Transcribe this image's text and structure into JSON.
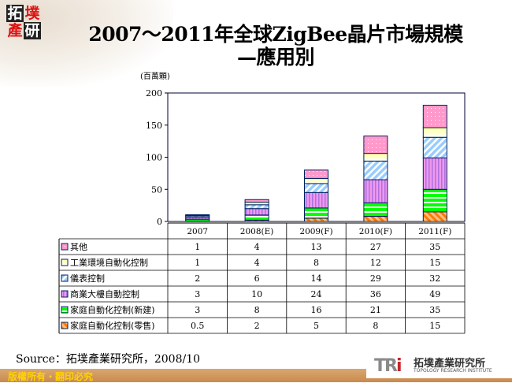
{
  "logo": {
    "chars": [
      "拓",
      "墣",
      "產",
      "研"
    ]
  },
  "title_line1": "2007～2011年全球ZigBee晶片市場規模",
  "title_line2": "—應用別",
  "unit_label": "(百萬顆)",
  "chart_data": {
    "type": "bar",
    "stacked": true,
    "categories": [
      "2007",
      "2008(E)",
      "2009(F)",
      "2010(F)",
      "2011(F)"
    ],
    "ylabel": "(百萬顆)",
    "ylim": [
      0,
      200
    ],
    "yticks": [
      0,
      50,
      100,
      150,
      200
    ],
    "grid": false,
    "legend": "table-below",
    "series": [
      {
        "name": "家庭自動化控制(零售)",
        "values": [
          0.5,
          2,
          5,
          8,
          15
        ],
        "color": "#ff8c1a",
        "pattern": "diagonal"
      },
      {
        "name": "家庭自動化控制(新建)",
        "values": [
          3,
          8,
          16,
          21,
          35
        ],
        "color": "#00ff00",
        "pattern": "horizontal"
      },
      {
        "name": "商業大樓自動控制",
        "values": [
          3,
          10,
          24,
          36,
          49
        ],
        "color": "#e28ae8",
        "pattern": "vertical"
      },
      {
        "name": "儀表控制",
        "values": [
          2,
          6,
          14,
          29,
          32
        ],
        "color": "#99ccff",
        "pattern": "diagonal-wide"
      },
      {
        "name": "工業環境自動化控制",
        "values": [
          1,
          4,
          8,
          12,
          15
        ],
        "color": "#ffffc0",
        "pattern": "gradient"
      },
      {
        "name": "其他",
        "values": [
          1,
          4,
          13,
          27,
          35
        ],
        "color": "#ff99cc",
        "pattern": "dots"
      }
    ]
  },
  "source": "Source：拓墣產業研究所，2008/10",
  "footer": {
    "copyright": "版權所有・翻印必究"
  },
  "institute": {
    "mark_left": "TR",
    "mark_right": "i",
    "name_cn": "拓墣產業研究所",
    "name_en": "TOPOLOGY RESEARCH INSTITUTE"
  }
}
